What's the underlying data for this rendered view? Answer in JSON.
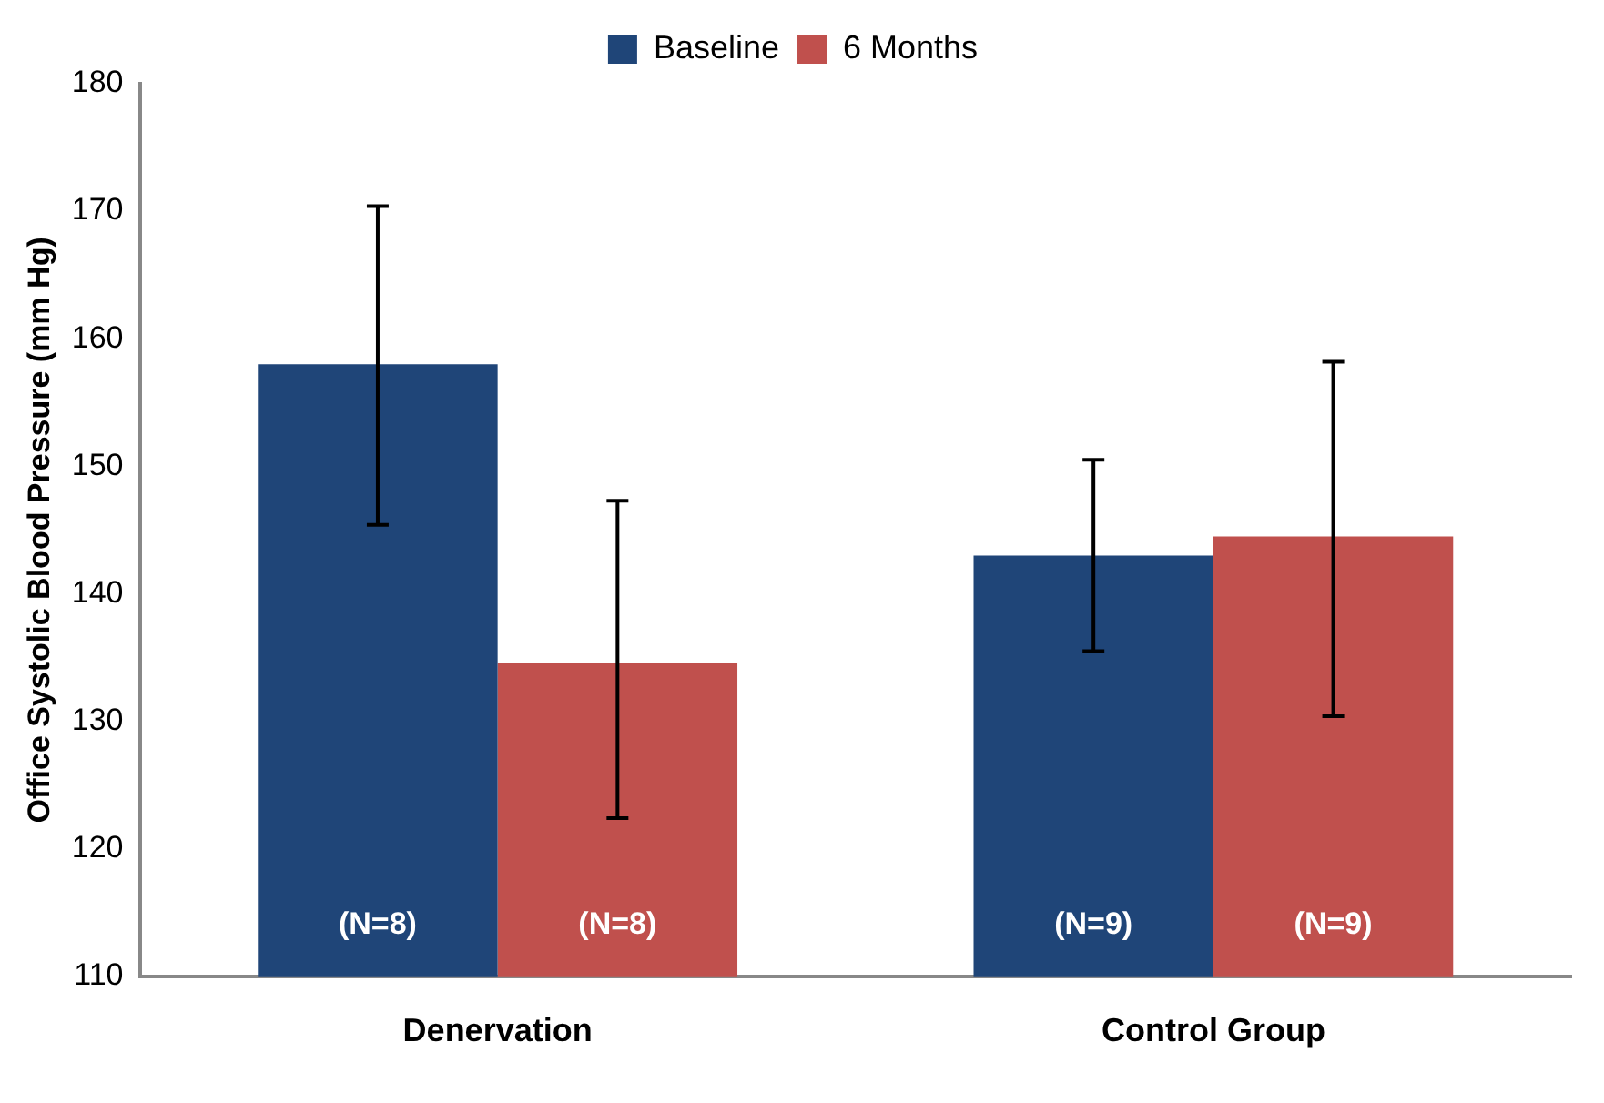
{
  "chart_data": {
    "type": "bar",
    "ylabel": "Office Systolic Blood Pressure (mm Hg)",
    "categories": [
      "Denervation",
      "Control Group"
    ],
    "series": [
      {
        "name": "Baseline",
        "color": "#1f4578",
        "values": [
          158.0,
          143.0
        ],
        "errors": [
          [
            145.4,
            170.4
          ],
          [
            135.5,
            150.5
          ]
        ]
      },
      {
        "name": "6 Months",
        "color": "#c0504d",
        "values": [
          134.6,
          144.5
        ],
        "errors": [
          [
            122.4,
            147.3
          ],
          [
            130.4,
            158.2
          ]
        ]
      }
    ],
    "annotations": [
      "(N=8)",
      "(N=9)",
      "(N=8)",
      "(N=9)"
    ],
    "ylim": [
      110,
      180
    ],
    "yticks": [
      110,
      120,
      130,
      140,
      150,
      160,
      170,
      180
    ],
    "grid": false,
    "legend": "top"
  }
}
